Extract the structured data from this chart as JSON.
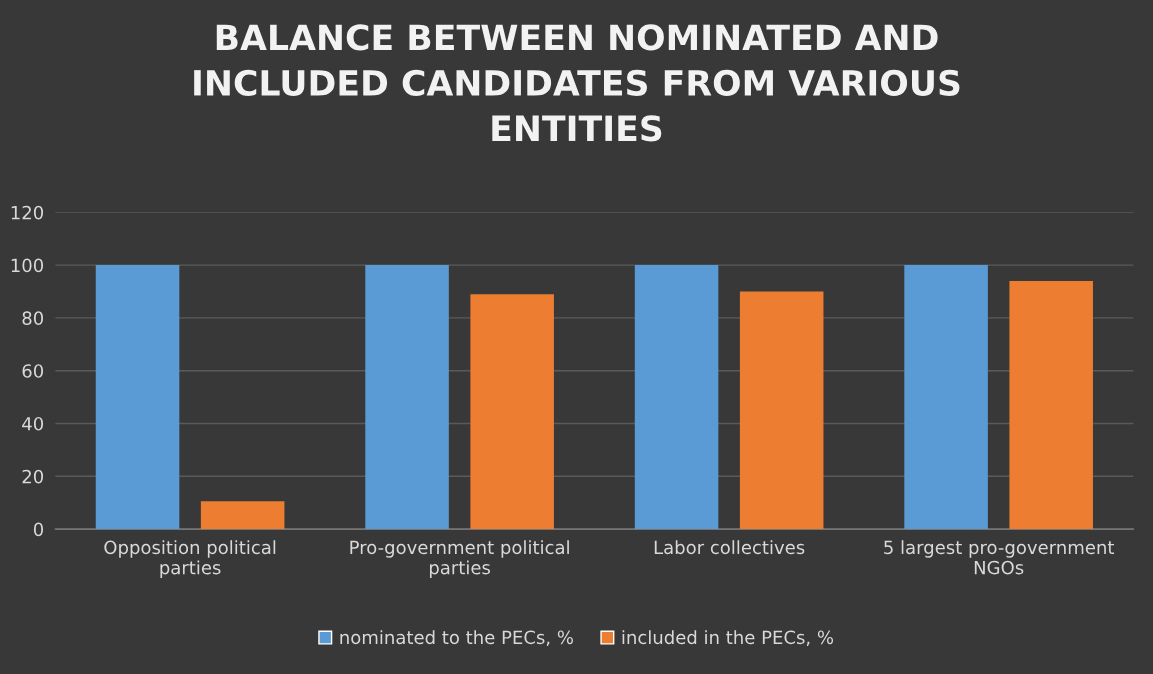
{
  "chart_data": {
    "type": "bar",
    "title": "BALANCE BETWEEN NOMINATED AND\nINCLUDED CANDIDATES FROM VARIOUS\nENTITIES",
    "categories": [
      "Opposition political\nparties",
      "Pro-government political\nparties",
      "Labor collectives",
      "5 largest pro-government\nNGOs"
    ],
    "series": [
      {
        "name": "nominated to the PECs, %",
        "color": "#5b9bd5",
        "values": [
          100,
          100,
          100,
          100
        ]
      },
      {
        "name": "included in the PECs, %",
        "color": "#ed7d31",
        "values": [
          10.5,
          89,
          90,
          94
        ]
      }
    ],
    "ylim": [
      0,
      120
    ],
    "yticks": [
      0,
      20,
      40,
      60,
      80,
      100,
      120
    ],
    "grid": "y",
    "legend": "bottom"
  }
}
